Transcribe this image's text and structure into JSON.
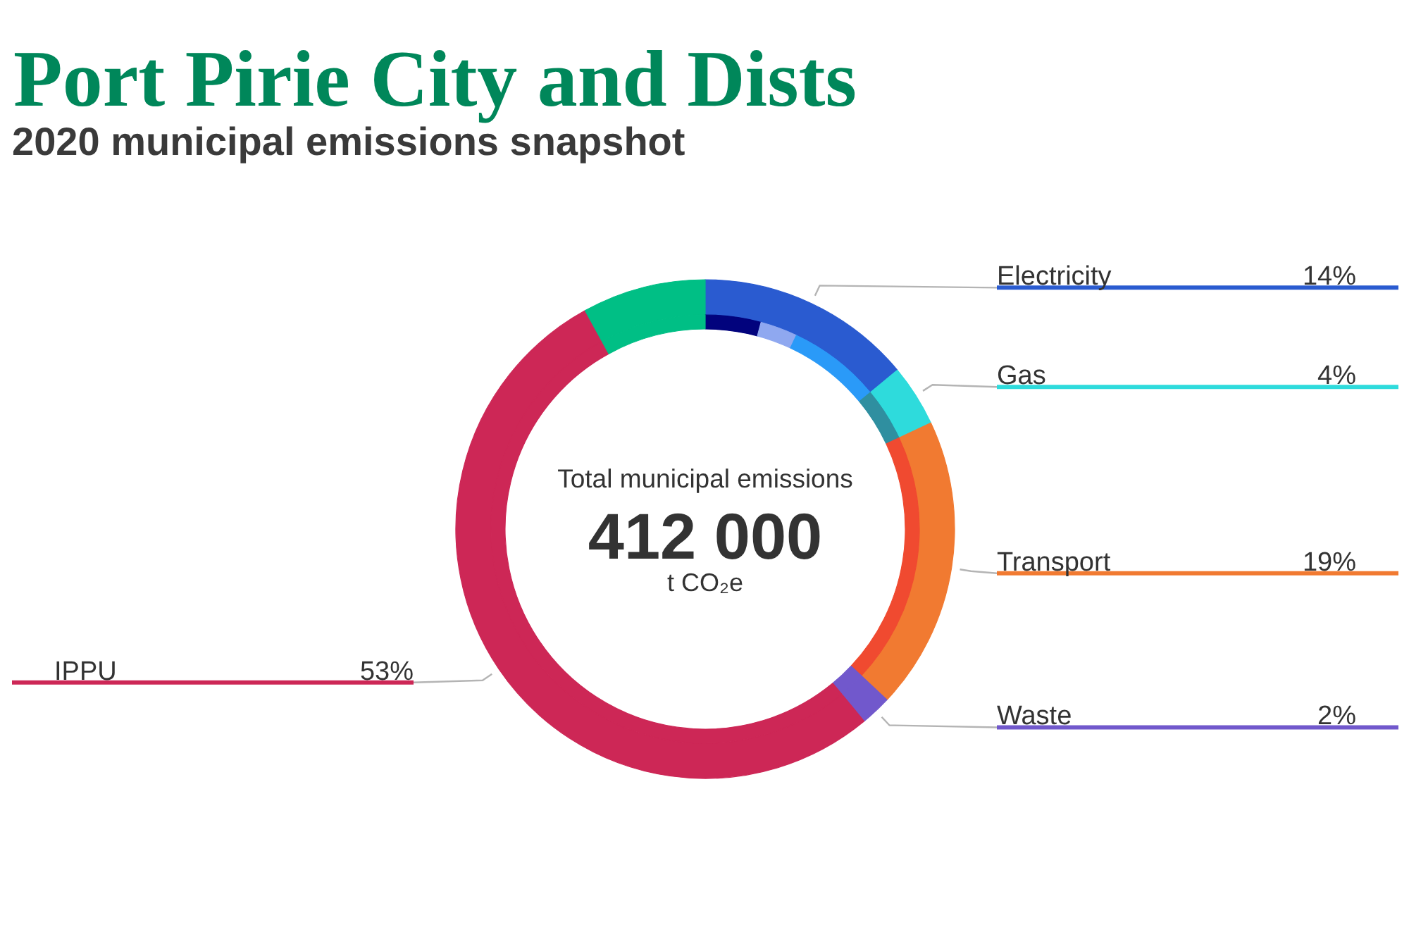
{
  "chart_data": {
    "type": "donut",
    "title": "Port Pirie City and Dists",
    "subtitle": "2020 municipal emissions snapshot",
    "categories": [
      "Electricity",
      null,
      null,
      "Gas",
      "Transport",
      "Waste",
      "IPPU",
      null
    ],
    "series": [
      {
        "values": [
          14,
          null,
          null,
          4,
          19,
          2,
          53,
          8
        ],
        "colors": [
          "#2a5bd0",
          "#2a5bd0",
          "#2a5bd0",
          "#2edbdc",
          "#f17a31",
          "#7158cc",
          "#cd2756",
          "#00bf85"
        ],
        "value_labels": [
          "14%",
          null,
          null,
          "4%",
          "19%",
          "2%",
          "53%",
          null
        ]
      },
      {
        "values": [
          4.2,
          2.8,
          7,
          4,
          19,
          2,
          53,
          8
        ],
        "colors": [
          "#02037d",
          "#8fa8f0",
          "#2a9af8",
          "#2f8fa0",
          "#f04a30",
          "#7158cc",
          "#cd2756",
          "#00bf85"
        ]
      }
    ],
    "annotations": [
      "Total municipal emissions",
      "412 000",
      "t CO₂e"
    ]
  }
}
